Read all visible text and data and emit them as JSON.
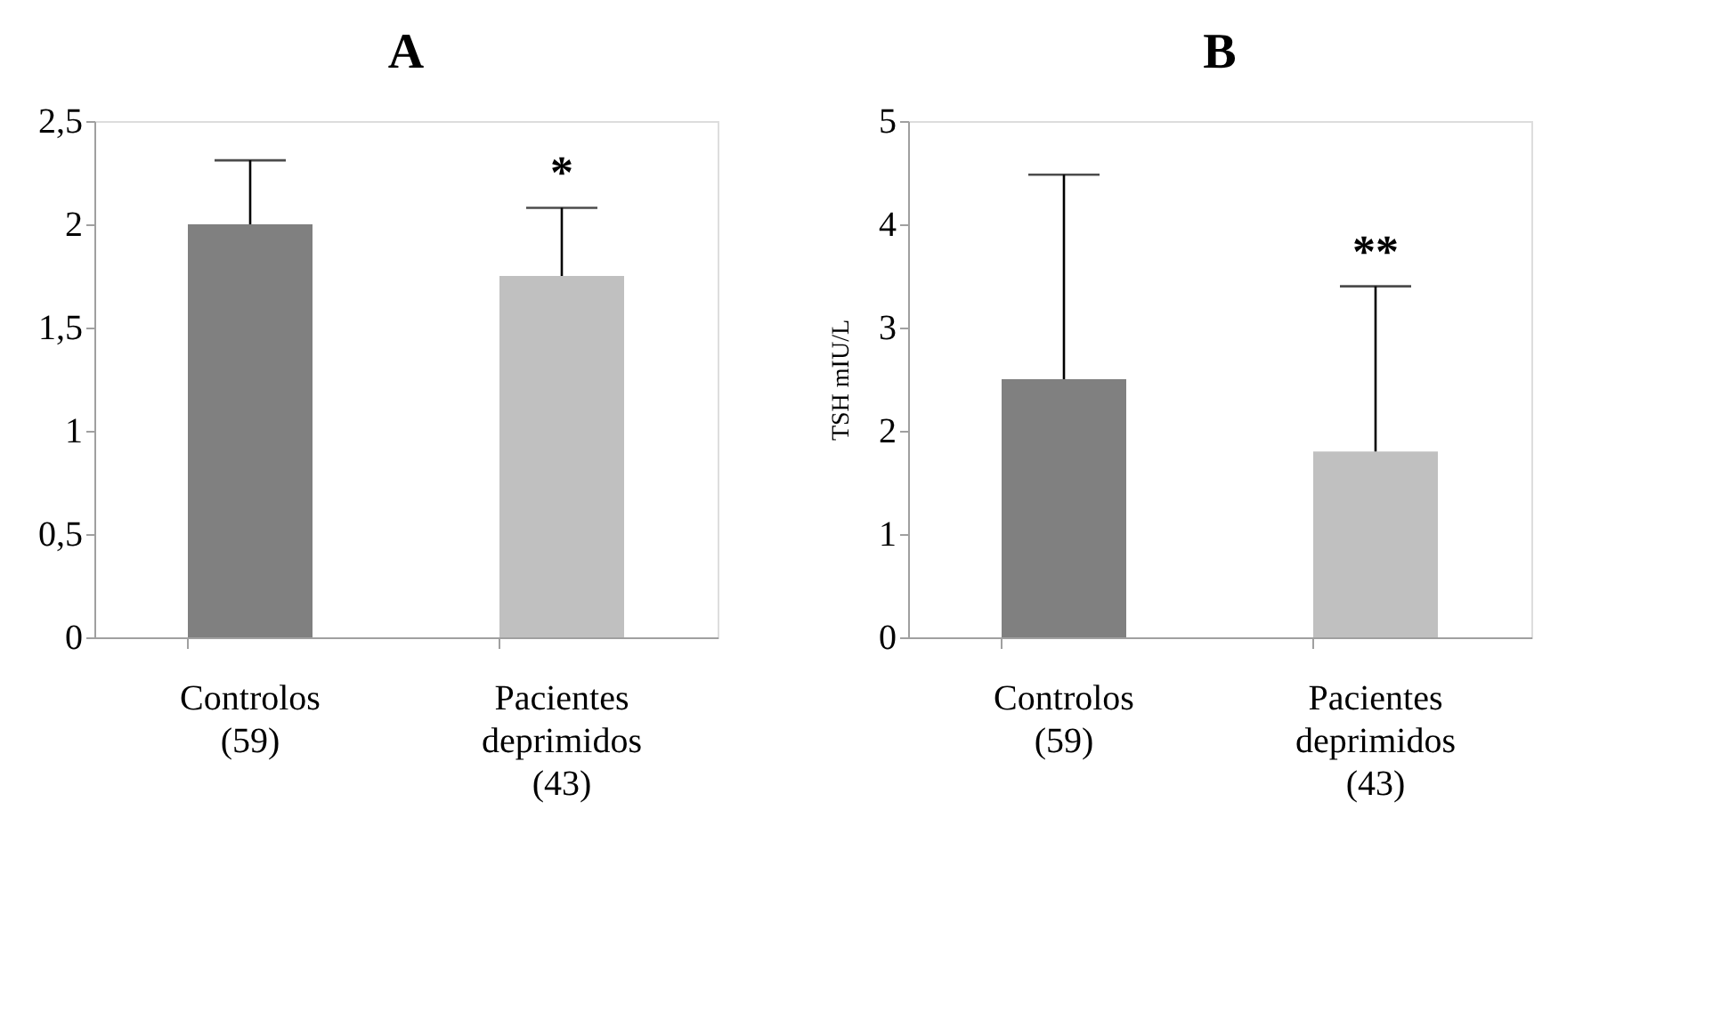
{
  "chart_data": [
    {
      "type": "bar",
      "title": "A",
      "categories": [
        "Controlos\n(59)",
        "Pacientes\ndeprimidos\n(43)"
      ],
      "values": [
        2.0,
        1.75
      ],
      "colors": [
        "#808080",
        "#c0c0c0"
      ],
      "errors": [
        [
          2.0,
          2.31
        ],
        [
          1.75,
          2.08
        ]
      ],
      "ylim": [
        0,
        2.5
      ],
      "yticks": [
        0,
        {
          "value": 0.5,
          "label": "0,5"
        },
        1,
        {
          "value": 1.5,
          "label": "1,5"
        },
        2,
        {
          "value": 2.5,
          "label": "2,5"
        }
      ],
      "grid": false,
      "annotations": [
        "*"
      ]
    },
    {
      "type": "bar",
      "title": "B",
      "ylabel": "TSH  mIU/L",
      "categories": [
        "Controlos\n(59)",
        "Pacientes\ndeprimidos\n(43)"
      ],
      "values": [
        2.5,
        1.8
      ],
      "colors": [
        "#808080",
        "#c0c0c0"
      ],
      "errors": [
        [
          2.5,
          4.48
        ],
        [
          1.8,
          3.4
        ]
      ],
      "ylim": [
        0,
        5
      ],
      "yticks": [
        0,
        1,
        2,
        3,
        4,
        5
      ],
      "grid": false,
      "annotations": [
        "**"
      ]
    }
  ]
}
